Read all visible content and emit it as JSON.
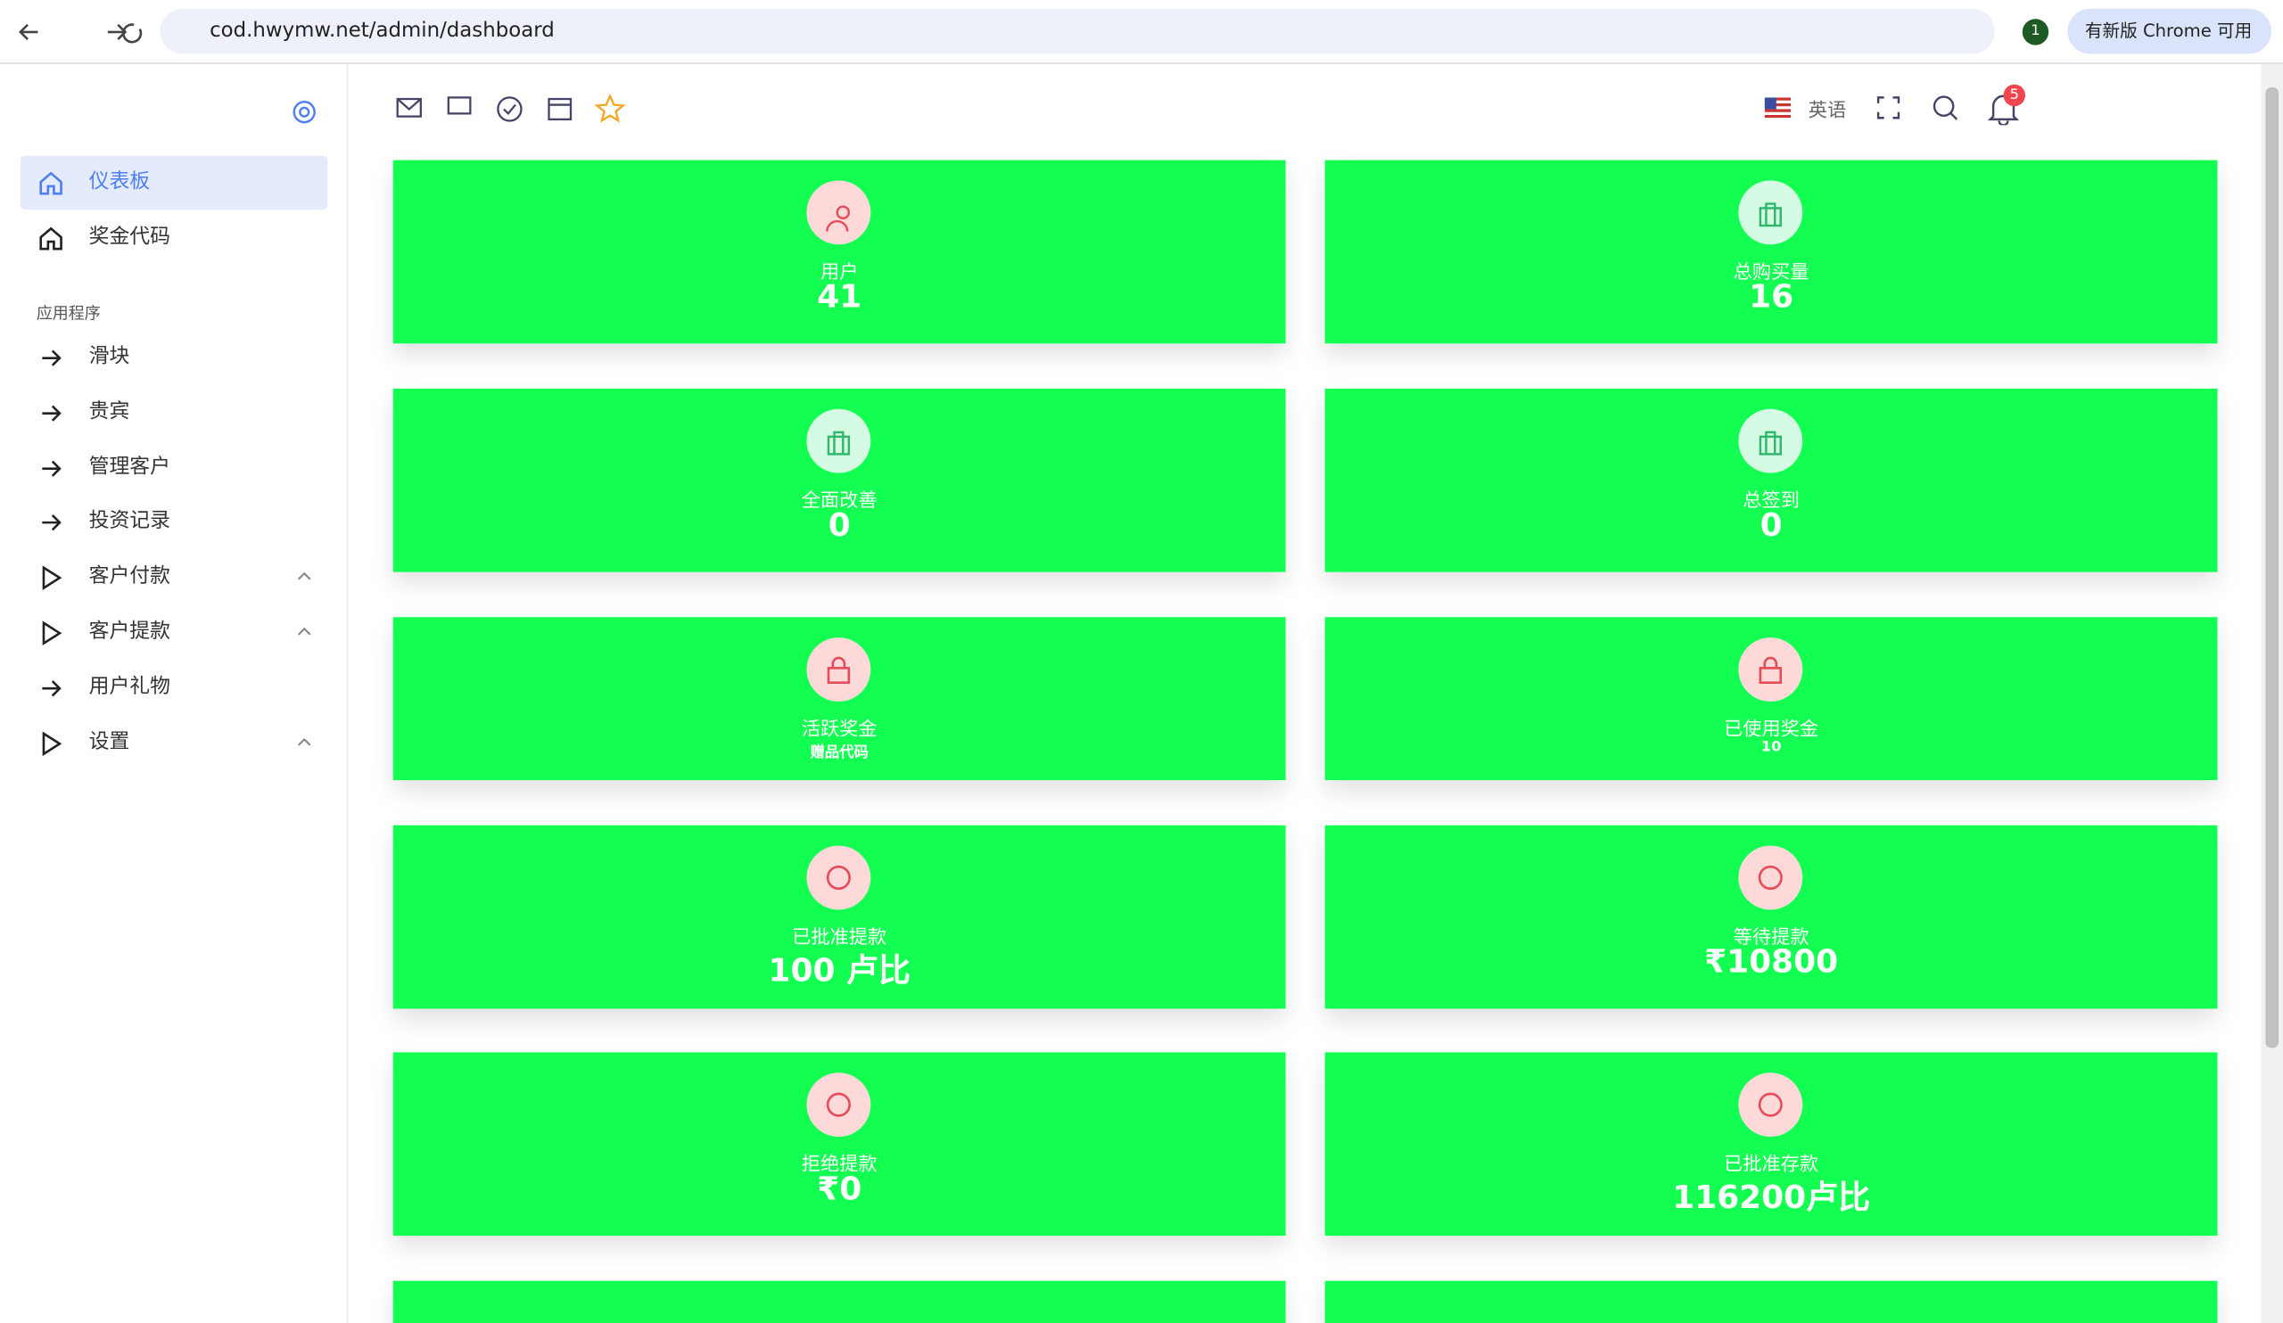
{
  "browser": {
    "url": "cod.hwymw.net/admin/dashboard",
    "profile": "1",
    "update_button": "有新版 Chrome 可用"
  },
  "sidebar": {
    "items": [
      "仪表板",
      "奖金代码"
    ],
    "section": "应用程序",
    "app_items": [
      {
        "label": "滑块",
        "icon": "arrow"
      },
      {
        "label": "贵宾",
        "icon": "arrow"
      },
      {
        "label": "管理客户",
        "icon": "arrow"
      },
      {
        "label": "投资记录",
        "icon": "arrow"
      },
      {
        "label": "客户付款",
        "icon": "play",
        "submenu": true
      },
      {
        "label": "客户提款",
        "icon": "play",
        "submenu": true
      },
      {
        "label": "用户礼物",
        "icon": "arrow"
      },
      {
        "label": "设置",
        "icon": "play",
        "submenu": true
      }
    ]
  },
  "header": {
    "language": "英语",
    "notification_count": "5"
  },
  "cards": [
    {
      "label": "用户",
      "value": "41",
      "icon": "user"
    },
    {
      "label": "总购买量",
      "value": "16",
      "icon": "briefcase"
    },
    {
      "label": "全面改善",
      "value": "0",
      "icon": "briefcase"
    },
    {
      "label": "总签到",
      "value": "0",
      "icon": "briefcase"
    },
    {
      "label": "活跃奖金",
      "value": "赠品代码",
      "icon": "bag",
      "size": "small"
    },
    {
      "label": "已使用奖金",
      "value": "10",
      "icon": "bag",
      "size": "small"
    },
    {
      "label": "已批准提款",
      "value": "100 卢比",
      "icon": "circle"
    },
    {
      "label": "等待提款",
      "value": "₹10800",
      "icon": "circle"
    },
    {
      "label": "拒绝提款",
      "value": "₹0",
      "icon": "circle"
    },
    {
      "label": "已批准存款",
      "value": "116200卢比",
      "icon": "circle"
    }
  ]
}
